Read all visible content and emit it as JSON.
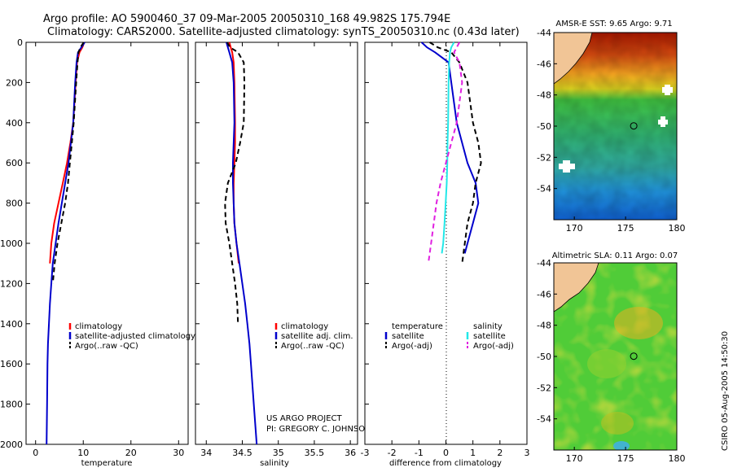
{
  "title_line1": "Argo profile: AO 5900460_37 09-Mar-2005 20050310_168 49.982S 175.794E",
  "title_line2": "Climatology: CARS2000. Satellite-adjusted climatology: synTS_20050310.nc (0.43d later)",
  "credit_line1": "US ARGO PROJECT",
  "credit_line2": "PI: GREGORY C. JOHNSON",
  "side_stamp": "CSIRO 05-Aug-2005 14:50:30",
  "colors": {
    "climatology": "#ff0000",
    "satellite": "#0000cc",
    "argo": "#000000",
    "satellite_sal": "#22e8e8",
    "argo_sal": "#e020e0"
  },
  "chart_data": [
    {
      "type": "line",
      "xlabel": "temperature",
      "ylabel": "",
      "xlim": [
        -2,
        32
      ],
      "ylim": [
        2000,
        0
      ],
      "xticks": [
        "0",
        "10",
        "20",
        "30"
      ],
      "xtick_values": [
        0,
        10,
        20,
        30
      ],
      "yticks": [
        "0",
        "200",
        "400",
        "600",
        "800",
        "1000",
        "1200",
        "1400",
        "1600",
        "1800",
        "2000"
      ],
      "ytick_values": [
        0,
        200,
        400,
        600,
        800,
        1000,
        1200,
        1400,
        1600,
        1800,
        2000
      ],
      "legend_position": "lower-center",
      "series": [
        {
          "name": "climatology",
          "style": "solid",
          "color": "#ff0000",
          "x": [
            10.2,
            9.8,
            9.2,
            8.7,
            8.4,
            7.9,
            7.3,
            6.6,
            5.7,
            4.8,
            3.9,
            3.3,
            3.0
          ],
          "y": [
            0,
            25,
            50,
            100,
            200,
            400,
            500,
            600,
            700,
            800,
            900,
            1000,
            1100
          ]
        },
        {
          "name": "satellite-adjusted climatology",
          "style": "solid",
          "color": "#0000cc",
          "x": [
            10.3,
            9.6,
            8.9,
            8.6,
            8.3,
            7.9,
            7.4,
            6.9,
            6.2,
            5.5,
            4.8,
            4.2,
            3.6,
            3.3,
            3.0,
            2.8,
            2.6,
            2.5,
            2.4,
            2.3
          ],
          "y": [
            0,
            25,
            50,
            100,
            200,
            400,
            500,
            600,
            700,
            800,
            900,
            1000,
            1100,
            1200,
            1300,
            1400,
            1500,
            1600,
            1800,
            2000
          ]
        },
        {
          "name": "Argo(..raw -QC)",
          "style": "dashed",
          "color": "#000000",
          "x": [
            10.1,
            9.4,
            9.0,
            8.8,
            8.5,
            8.0,
            7.6,
            7.2,
            6.8,
            6.2,
            5.4,
            4.6,
            4.0,
            3.6
          ],
          "y": [
            0,
            25,
            50,
            100,
            200,
            400,
            500,
            600,
            700,
            800,
            900,
            1000,
            1100,
            1200
          ]
        }
      ]
    },
    {
      "type": "line",
      "xlabel": "salinity",
      "ylabel": "",
      "xlim": [
        33.85,
        36.1
      ],
      "ylim": [
        2000,
        0
      ],
      "xticks": [
        "34",
        "34.5",
        "35",
        "35.5",
        "36"
      ],
      "xtick_values": [
        34,
        34.5,
        35,
        35.5,
        36
      ],
      "legend_position": "lower-center",
      "series": [
        {
          "name": "climatology",
          "style": "solid",
          "color": "#ff0000",
          "x": [
            34.32,
            34.34,
            34.36,
            34.38,
            34.39,
            34.4,
            34.4,
            34.39,
            34.38,
            34.38,
            34.39,
            34.42,
            34.45
          ],
          "y": [
            0,
            25,
            50,
            100,
            200,
            400,
            500,
            600,
            700,
            800,
            900,
            1000,
            1100
          ]
        },
        {
          "name": "satellite adj. clim.",
          "style": "solid",
          "color": "#0000cc",
          "x": [
            34.28,
            34.3,
            34.32,
            34.36,
            34.38,
            34.39,
            34.38,
            34.37,
            34.37,
            34.38,
            34.39,
            34.42,
            34.46,
            34.5,
            34.54,
            34.57,
            34.6,
            34.62,
            34.66,
            34.7
          ],
          "y": [
            0,
            25,
            50,
            100,
            200,
            400,
            500,
            600,
            700,
            800,
            900,
            1000,
            1100,
            1200,
            1300,
            1400,
            1500,
            1600,
            1800,
            2000
          ]
        },
        {
          "name": "Argo(..raw -QC)",
          "style": "dashed",
          "color": "#000000",
          "x": [
            34.29,
            34.33,
            34.44,
            34.52,
            34.53,
            34.52,
            34.47,
            34.41,
            34.3,
            34.26,
            34.27,
            34.32,
            34.36,
            34.4,
            34.43,
            34.44
          ],
          "y": [
            0,
            25,
            50,
            100,
            200,
            400,
            500,
            600,
            700,
            800,
            900,
            1000,
            1100,
            1200,
            1300,
            1400
          ]
        }
      ]
    },
    {
      "type": "line",
      "xlabel": "difference from climatology",
      "ylabel": "",
      "xlim": [
        -3,
        3
      ],
      "ylim": [
        2000,
        0
      ],
      "xticks": [
        "-3",
        "-2",
        "-1",
        "0",
        "1",
        "2",
        "3"
      ],
      "xtick_values": [
        -3,
        -2,
        -1,
        0,
        1,
        2,
        3
      ],
      "legend_position": "lower-center",
      "legend_groups": [
        "temperature",
        "salinity"
      ],
      "series": [
        {
          "name": "satellite",
          "group": "temperature",
          "style": "solid",
          "color": "#0000cc",
          "x": [
            -0.9,
            -0.7,
            -0.4,
            0.1,
            0.2,
            0.4,
            0.6,
            0.8,
            1.1,
            1.2,
            1.0,
            0.8,
            0.7
          ],
          "y": [
            0,
            25,
            50,
            100,
            200,
            400,
            500,
            600,
            700,
            800,
            900,
            1000,
            1050
          ]
        },
        {
          "name": "Argo(-adj)",
          "group": "temperature",
          "style": "dashed",
          "color": "#000000",
          "x": [
            -0.6,
            -0.3,
            0.2,
            0.5,
            0.8,
            1.0,
            1.2,
            1.3,
            1.1,
            1.0,
            0.8,
            0.7,
            0.6
          ],
          "y": [
            0,
            25,
            50,
            100,
            200,
            400,
            500,
            600,
            700,
            800,
            900,
            1000,
            1100
          ]
        },
        {
          "name": "satellite",
          "group": "salinity",
          "style": "solid",
          "color": "#22e8e8",
          "x": [
            0.3,
            0.2,
            0.15,
            0.12,
            0.1,
            0.08,
            0.06,
            0.05,
            0.03,
            -0.01,
            -0.05,
            -0.1,
            -0.15
          ],
          "y": [
            0,
            25,
            50,
            100,
            200,
            400,
            500,
            600,
            700,
            800,
            900,
            1000,
            1050
          ]
        },
        {
          "name": "Argo(-adj)",
          "group": "salinity",
          "style": "dashed",
          "color": "#e020e0",
          "x": [
            0.5,
            0.4,
            0.3,
            0.5,
            0.6,
            0.4,
            0.2,
            0.0,
            -0.2,
            -0.35,
            -0.45,
            -0.55,
            -0.65
          ],
          "y": [
            0,
            25,
            50,
            100,
            200,
            400,
            500,
            600,
            700,
            800,
            900,
            1000,
            1100
          ]
        }
      ]
    },
    {
      "type": "heatmap",
      "title": "AMSR-E SST: 9.65 Argo: 9.71",
      "xlim": [
        168,
        180
      ],
      "ylim": [
        -56,
        -44
      ],
      "xticks": [
        "170",
        "175",
        "180"
      ],
      "xtick_values": [
        170,
        175,
        180
      ],
      "yticks": [
        "-44",
        "-46",
        "-48",
        "-50",
        "-52",
        "-54"
      ],
      "ytick_values": [
        -44,
        -46,
        -48,
        -50,
        -52,
        -54
      ],
      "marker": {
        "lon": 175.794,
        "lat": -49.982
      }
    },
    {
      "type": "heatmap",
      "title": "Altimetric SLA: 0.11 Argo: 0.07",
      "xlim": [
        168,
        180
      ],
      "ylim": [
        -56,
        -44
      ],
      "xticks": [
        "170",
        "175",
        "180"
      ],
      "xtick_values": [
        170,
        175,
        180
      ],
      "yticks": [
        "-44",
        "-46",
        "-48",
        "-50",
        "-52",
        "-54"
      ],
      "ytick_values": [
        -44,
        -46,
        -48,
        -50,
        -52,
        -54
      ],
      "marker": {
        "lon": 175.794,
        "lat": -49.982
      }
    }
  ]
}
